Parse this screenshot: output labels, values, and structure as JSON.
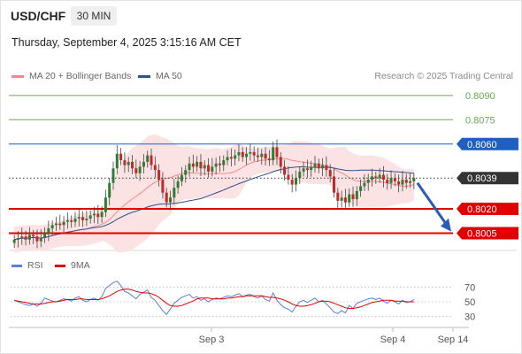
{
  "header": {
    "pair": "USD/CHF",
    "timeframe": "30 MIN",
    "datetime": "Thursday, September 4, 2025 3:15:16 AM CET"
  },
  "legend": {
    "ma20": {
      "label": "MA 20 + Bollinger Bands",
      "color": "#f08a8a"
    },
    "ma50": {
      "label": "MA 50",
      "color": "#2f4f8f"
    }
  },
  "credit": "Research © 2025 Trading Central",
  "rsi_legend": {
    "rsi": {
      "label": "RSI",
      "color": "#5b7fd8"
    },
    "ma9": {
      "label": "9MA",
      "color": "#e00000"
    }
  },
  "chart_data": [
    {
      "type": "candlestick",
      "ylim": [
        0.7996,
        0.8097
      ],
      "current_price": "0.8039",
      "levels": [
        {
          "value": 0.809,
          "label": "0.8090",
          "kind": "target",
          "color": "#6aa84f"
        },
        {
          "value": 0.8075,
          "label": "0.8075",
          "kind": "target",
          "color": "#6aa84f"
        },
        {
          "value": 0.806,
          "label": "0.8060",
          "kind": "resistance",
          "color": "#1f5fbf"
        },
        {
          "value": 0.8039,
          "label": "0.8039",
          "kind": "current",
          "color": "#333333"
        },
        {
          "value": 0.802,
          "label": "0.8020",
          "kind": "support",
          "color": "#e00000"
        },
        {
          "value": 0.8005,
          "label": "0.8005",
          "kind": "support",
          "color": "#e00000"
        }
      ],
      "x_ticks": [
        "Sep 3",
        "Sep 4",
        "Sep 14"
      ],
      "closes": [
        0.8001,
        0.8002,
        0.8003,
        0.8001,
        0.8004,
        0.8003,
        0.8,
        0.8002,
        0.8005,
        0.8008,
        0.801,
        0.8011,
        0.801,
        0.8012,
        0.8013,
        0.8012,
        0.8014,
        0.8015,
        0.8013,
        0.8014,
        0.8016,
        0.8017,
        0.8015,
        0.8018,
        0.8027,
        0.8036,
        0.8045,
        0.8054,
        0.805,
        0.8047,
        0.8049,
        0.8045,
        0.8042,
        0.8046,
        0.8049,
        0.8053,
        0.8047,
        0.8044,
        0.8038,
        0.803,
        0.8024,
        0.8027,
        0.8033,
        0.8037,
        0.8041,
        0.8044,
        0.8048,
        0.8046,
        0.8049,
        0.8045,
        0.8047,
        0.8043,
        0.8046,
        0.8048,
        0.8047,
        0.805,
        0.8052,
        0.8051,
        0.8053,
        0.8055,
        0.8052,
        0.8054,
        0.8055,
        0.8053,
        0.8052,
        0.8054,
        0.8051,
        0.805,
        0.8058,
        0.8052,
        0.8046,
        0.8041,
        0.8038,
        0.8035,
        0.8039,
        0.8043,
        0.8045,
        0.8044,
        0.8046,
        0.8048,
        0.8045,
        0.8047,
        0.8044,
        0.804,
        0.803,
        0.8025,
        0.8027,
        0.8024,
        0.8029,
        0.8026,
        0.8031,
        0.8034,
        0.8036,
        0.8038,
        0.804,
        0.8039,
        0.8041,
        0.8038,
        0.8036,
        0.8039,
        0.8037,
        0.8035,
        0.8038,
        0.8036,
        0.8037,
        0.8039
      ],
      "forecast_arrow": {
        "from": 0.8036,
        "to": 0.8006
      },
      "rsi": {
        "ylim": [
          20,
          80
        ],
        "y_ticks": [
          70,
          50,
          30
        ],
        "rsi_values": [
          52,
          50,
          48,
          46,
          45,
          47,
          44,
          48,
          55,
          53,
          51,
          50,
          52,
          54,
          53,
          51,
          55,
          57,
          52,
          50,
          53,
          55,
          52,
          57,
          68,
          72,
          76,
          78,
          72,
          64,
          62,
          58,
          54,
          60,
          63,
          66,
          56,
          52,
          45,
          38,
          33,
          40,
          48,
          52,
          56,
          58,
          60,
          55,
          57,
          52,
          54,
          50,
          53,
          55,
          54,
          56,
          58,
          57,
          59,
          61,
          57,
          59,
          60,
          57,
          55,
          58,
          53,
          51,
          62,
          52,
          46,
          42,
          40,
          36,
          44,
          50,
          52,
          49,
          52,
          55,
          50,
          52,
          47,
          42,
          36,
          34,
          38,
          35,
          45,
          41,
          48,
          50,
          52,
          54,
          55,
          53,
          55,
          51,
          48,
          52,
          50,
          47,
          52,
          49,
          50,
          53
        ],
        "ma9_values": [
          52,
          51,
          50,
          49,
          48,
          47,
          47,
          47,
          48,
          49,
          50,
          50,
          51,
          52,
          53,
          53,
          53,
          54,
          54,
          53,
          53,
          53,
          53,
          54,
          56,
          58,
          61,
          64,
          66,
          67,
          67,
          66,
          64,
          63,
          62,
          62,
          61,
          59,
          56,
          52,
          48,
          45,
          44,
          44,
          45,
          47,
          49,
          51,
          54,
          55,
          55,
          55,
          54,
          54,
          54,
          54,
          55,
          55,
          56,
          57,
          57,
          58,
          58,
          58,
          58,
          58,
          57,
          56,
          56,
          55,
          54,
          52,
          50,
          47,
          45,
          44,
          44,
          45,
          46,
          48,
          50,
          51,
          51,
          50,
          48,
          46,
          44,
          42,
          41,
          41,
          42,
          43,
          45,
          47,
          49,
          50,
          51,
          52,
          52,
          52,
          51,
          51,
          51,
          50,
          50,
          50
        ]
      }
    }
  ]
}
